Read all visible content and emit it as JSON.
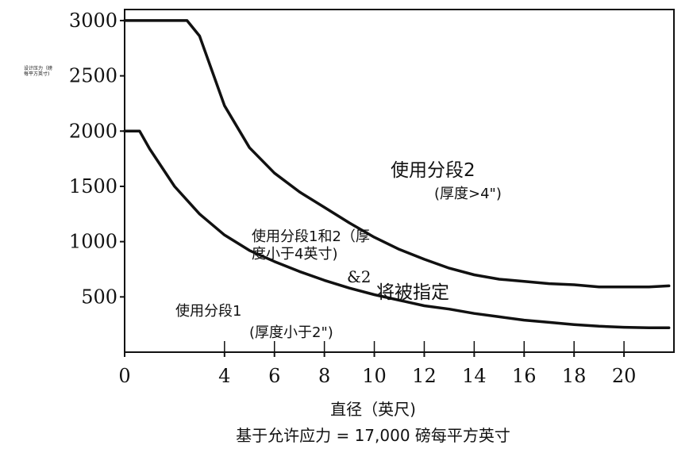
{
  "chart_data": {
    "type": "line",
    "title": "",
    "xlabel": "直径（英尺)",
    "ylabel_line1": "设计压力（磅",
    "ylabel_line2": "每平方英寸)",
    "footnote": "基于允许应力 = 17,000 磅每平方英寸",
    "xlim": [
      0,
      22
    ],
    "ylim": [
      0,
      3100
    ],
    "x_ticks": [
      0,
      4,
      6,
      8,
      10,
      12,
      14,
      16,
      18,
      20
    ],
    "y_ticks": [
      500,
      1000,
      1500,
      2000,
      2500,
      3000
    ],
    "grid": false,
    "series": [
      {
        "x": [
          0,
          2.5,
          3,
          4,
          5,
          6,
          7,
          8,
          9,
          10,
          11,
          12,
          13,
          14,
          15,
          16,
          17,
          18,
          19,
          20,
          21,
          21.8
        ],
        "values": [
          3000,
          3000,
          2860,
          2230,
          1850,
          1620,
          1450,
          1310,
          1170,
          1040,
          930,
          840,
          760,
          700,
          660,
          640,
          620,
          610,
          590,
          590,
          590,
          600
        ]
      },
      {
        "x": [
          0,
          0.6,
          1,
          2,
          3,
          4,
          5,
          6,
          7,
          8,
          9,
          10,
          11,
          12,
          13,
          14,
          15,
          16,
          17,
          18,
          19,
          20,
          21,
          21.8
        ],
        "values": [
          2000,
          2000,
          1840,
          1500,
          1250,
          1060,
          920,
          820,
          730,
          650,
          580,
          520,
          470,
          420,
          390,
          350,
          320,
          290,
          270,
          250,
          235,
          225,
          220,
          220
        ]
      }
    ],
    "annotations": {
      "region2": "使用分段2",
      "region2_note": "(厚度>4\")",
      "region12_line1": "使用分段1和2（厚",
      "region12_line2": "度小于4英寸)",
      "amp2": "&2",
      "specified": "将被指定",
      "region1": "使用分段1",
      "region1_note": "(厚度小于2\")"
    }
  }
}
